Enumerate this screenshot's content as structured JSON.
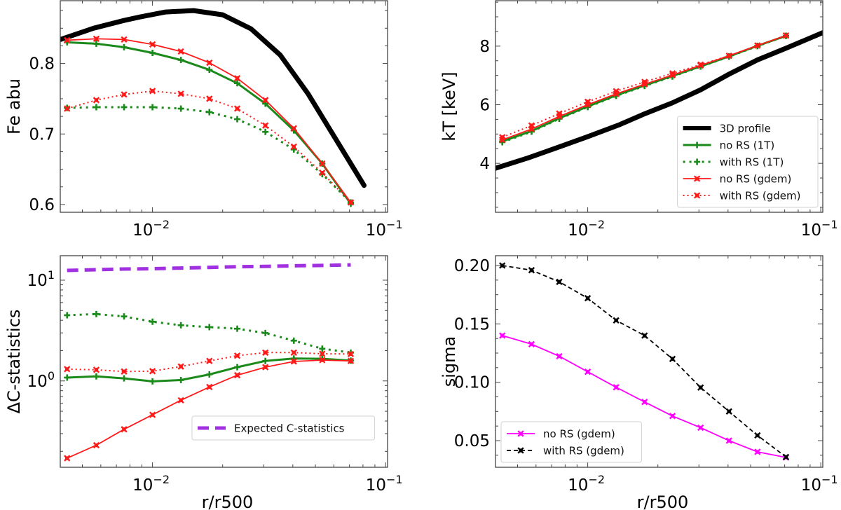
{
  "chart_data": [
    {
      "type": "line",
      "panel": "top-left",
      "title": "",
      "xlabel": "",
      "ylabel": "Fe abu",
      "xscale": "log",
      "yscale": "linear",
      "xlim": [
        0.00402,
        0.102
      ],
      "ylim": [
        0.589,
        0.889
      ],
      "xticks": [
        {
          "value": 0.01,
          "label": "10",
          "exp": "−2"
        },
        {
          "value": 0.1,
          "label": "10",
          "exp": "−1"
        }
      ],
      "yticks": [
        {
          "value": 0.6,
          "label": "0.6"
        },
        {
          "value": 0.7,
          "label": "0.7"
        },
        {
          "value": 0.8,
          "label": "0.8"
        }
      ],
      "legend": null,
      "series": [
        {
          "name": "3D profile",
          "color": "#000000",
          "style": "solid-thick",
          "marker": "none",
          "x": [
            0.00402,
            0.00558,
            0.00755,
            0.00884,
            0.0114,
            0.015,
            0.02,
            0.0265,
            0.0353,
            0.0465,
            0.0809
          ],
          "y": [
            0.834,
            0.85,
            0.861,
            0.866,
            0.873,
            0.875,
            0.869,
            0.849,
            0.812,
            0.757,
            0.627
          ]
        },
        {
          "name": "no RS (1T)",
          "color": "#1a8a1a",
          "style": "solid",
          "marker": "plus",
          "x": [
            0.0043,
            0.00574,
            0.00755,
            0.01,
            0.01324,
            0.01754,
            0.0231,
            0.0305,
            0.0404,
            0.0535,
            0.0709
          ],
          "y": [
            0.83,
            0.828,
            0.823,
            0.815,
            0.805,
            0.791,
            0.772,
            0.743,
            0.705,
            0.658,
            0.601
          ]
        },
        {
          "name": "with RS (1T)",
          "color": "#1a8a1a",
          "style": "dotted",
          "marker": "plus",
          "x": [
            0.0043,
            0.00574,
            0.00755,
            0.01,
            0.01324,
            0.01754,
            0.0231,
            0.0305,
            0.0404,
            0.0535,
            0.0709
          ],
          "y": [
            0.737,
            0.738,
            0.738,
            0.738,
            0.736,
            0.731,
            0.721,
            0.703,
            0.678,
            0.643,
            0.603
          ]
        },
        {
          "name": "no RS (gdem)",
          "color": "#ff1a1a",
          "style": "solid",
          "marker": "x",
          "x": [
            0.0043,
            0.00574,
            0.00755,
            0.01,
            0.01324,
            0.01754,
            0.0231,
            0.0305,
            0.0404,
            0.0535,
            0.0709
          ],
          "y": [
            0.833,
            0.835,
            0.834,
            0.827,
            0.817,
            0.801,
            0.779,
            0.748,
            0.708,
            0.658,
            0.603
          ]
        },
        {
          "name": "with RS (gdem)",
          "color": "#ff1a1a",
          "style": "dotted",
          "marker": "x",
          "x": [
            0.0043,
            0.00574,
            0.00755,
            0.01,
            0.01324,
            0.01754,
            0.0231,
            0.0305,
            0.0404,
            0.0535,
            0.0709
          ],
          "y": [
            0.736,
            0.748,
            0.756,
            0.761,
            0.757,
            0.75,
            0.736,
            0.712,
            0.682,
            0.645,
            0.603
          ]
        }
      ]
    },
    {
      "type": "line",
      "panel": "top-right",
      "title": "",
      "xlabel": "",
      "ylabel": "kT [keV]",
      "xscale": "log",
      "yscale": "linear",
      "xlim": [
        0.00402,
        0.102
      ],
      "ylim": [
        2.33,
        9.55
      ],
      "xticks": [
        {
          "value": 0.01,
          "label": "10",
          "exp": "−2"
        },
        {
          "value": 0.1,
          "label": "10",
          "exp": "−1"
        }
      ],
      "yticks": [
        {
          "value": 4,
          "label": "4"
        },
        {
          "value": 6,
          "label": "6"
        },
        {
          "value": 8,
          "label": "8"
        }
      ],
      "legend": "lower-right",
      "series": [
        {
          "name": "3D profile",
          "color": "#000000",
          "style": "solid-thick",
          "marker": "none",
          "x": [
            0.00401,
            0.00553,
            0.0076,
            0.01,
            0.0136,
            0.0173,
            0.023,
            0.0305,
            0.0401,
            0.0535,
            0.071,
            0.102
          ],
          "y": [
            3.83,
            4.18,
            4.57,
            4.91,
            5.31,
            5.67,
            6.06,
            6.51,
            7.03,
            7.53,
            7.93,
            8.46
          ]
        },
        {
          "name": "no RS (1T)",
          "color": "#1a8a1a",
          "style": "solid",
          "marker": "plus",
          "x": [
            0.0043,
            0.00574,
            0.00755,
            0.01,
            0.01324,
            0.01754,
            0.0231,
            0.0305,
            0.0404,
            0.0535,
            0.0709
          ],
          "y": [
            4.75,
            5.1,
            5.54,
            5.94,
            6.32,
            6.66,
            6.98,
            7.31,
            7.65,
            8.01,
            8.35
          ]
        },
        {
          "name": "with RS (1T)",
          "color": "#1a8a1a",
          "style": "dotted",
          "marker": "plus",
          "x": [
            0.0043,
            0.00574,
            0.00755,
            0.01,
            0.01324,
            0.01754,
            0.0231,
            0.0305,
            0.0404,
            0.0535,
            0.0709
          ],
          "y": [
            4.72,
            5.08,
            5.52,
            5.92,
            6.3,
            6.64,
            6.96,
            7.3,
            7.64,
            8.0,
            8.35
          ]
        },
        {
          "name": "no RS (gdem)",
          "color": "#ff1a1a",
          "style": "solid",
          "marker": "x",
          "x": [
            0.0043,
            0.00574,
            0.00755,
            0.01,
            0.01324,
            0.01754,
            0.0231,
            0.0305,
            0.0404,
            0.0535,
            0.0709
          ],
          "y": [
            4.8,
            5.17,
            5.6,
            6.0,
            6.37,
            6.7,
            7.01,
            7.34,
            7.67,
            8.02,
            8.36
          ]
        },
        {
          "name": "with RS (gdem)",
          "color": "#ff1a1a",
          "style": "dotted",
          "marker": "x",
          "x": [
            0.0043,
            0.00574,
            0.00755,
            0.01,
            0.01324,
            0.01754,
            0.0231,
            0.0305,
            0.0404,
            0.0535,
            0.0709
          ],
          "y": [
            4.89,
            5.29,
            5.7,
            6.1,
            6.46,
            6.78,
            7.07,
            7.37,
            7.67,
            8.02,
            8.36
          ]
        }
      ]
    },
    {
      "type": "line",
      "panel": "bottom-left",
      "title": "",
      "xlabel": "r/r500",
      "ylabel": "ΔC-statistics",
      "xscale": "log",
      "yscale": "log",
      "xlim": [
        0.00402,
        0.102
      ],
      "ylim": [
        0.139,
        17.5
      ],
      "xticks": [
        {
          "value": 0.01,
          "label": "10",
          "exp": "−2"
        },
        {
          "value": 0.1,
          "label": "10",
          "exp": "−1"
        }
      ],
      "yticks": [
        {
          "value": 1,
          "label": "10",
          "exp": "0"
        },
        {
          "value": 10,
          "label": "10",
          "exp": "1"
        }
      ],
      "legend": "lower-right",
      "series": [
        {
          "name": "Expected C-statistics",
          "color": "#a030e0",
          "style": "dashed-thick",
          "marker": "none",
          "in_legend": true,
          "x": [
            0.0043,
            0.00574,
            0.00755,
            0.01,
            0.01324,
            0.01754,
            0.0231,
            0.0305,
            0.0404,
            0.0535,
            0.0709
          ],
          "y": [
            12.5,
            12.7,
            12.9,
            13.0,
            13.2,
            13.4,
            13.6,
            13.7,
            13.9,
            14.0,
            14.2
          ]
        },
        {
          "name": "with RS (1T)",
          "color": "#1a8a1a",
          "style": "dotted",
          "marker": "plus",
          "in_legend": false,
          "x": [
            0.0043,
            0.00574,
            0.00755,
            0.01,
            0.01324,
            0.01754,
            0.0231,
            0.0305,
            0.0404,
            0.0535,
            0.0709
          ],
          "y": [
            4.49,
            4.61,
            4.37,
            3.87,
            3.57,
            3.42,
            3.3,
            2.99,
            2.51,
            2.09,
            1.91
          ]
        },
        {
          "name": "with RS (gdem)",
          "color": "#ff1a1a",
          "style": "dotted",
          "marker": "x",
          "in_legend": false,
          "x": [
            0.0043,
            0.00574,
            0.00755,
            0.01,
            0.01324,
            0.01754,
            0.0231,
            0.0305,
            0.0404,
            0.0535,
            0.0709
          ],
          "y": [
            1.31,
            1.29,
            1.24,
            1.25,
            1.39,
            1.58,
            1.78,
            1.91,
            1.91,
            1.86,
            1.85
          ]
        },
        {
          "name": "no RS (1T)",
          "color": "#1a8a1a",
          "style": "solid",
          "marker": "plus",
          "in_legend": false,
          "x": [
            0.0043,
            0.00574,
            0.00755,
            0.01,
            0.01324,
            0.01754,
            0.0231,
            0.0305,
            0.0404,
            0.0535,
            0.0709
          ],
          "y": [
            1.08,
            1.11,
            1.06,
            0.99,
            1.02,
            1.16,
            1.37,
            1.58,
            1.67,
            1.66,
            1.59
          ]
        },
        {
          "name": "no RS (gdem)",
          "color": "#ff1a1a",
          "style": "solid",
          "marker": "x",
          "in_legend": false,
          "x": [
            0.0043,
            0.00574,
            0.00755,
            0.01,
            0.01324,
            0.01754,
            0.0231,
            0.0305,
            0.0404,
            0.0535,
            0.0709
          ],
          "y": [
            0.171,
            0.23,
            0.331,
            0.461,
            0.643,
            0.871,
            1.14,
            1.37,
            1.56,
            1.61,
            1.58
          ]
        }
      ]
    },
    {
      "type": "line",
      "panel": "bottom-right",
      "title": "",
      "xlabel": "r/r500",
      "ylabel": "sigma",
      "xscale": "log",
      "yscale": "linear",
      "xlim": [
        0.00402,
        0.102
      ],
      "ylim": [
        0.0272,
        0.2084
      ],
      "xticks": [
        {
          "value": 0.01,
          "label": "10",
          "exp": "−2"
        },
        {
          "value": 0.1,
          "label": "10",
          "exp": "−1"
        }
      ],
      "yticks": [
        {
          "value": 0.05,
          "label": "0.05"
        },
        {
          "value": 0.1,
          "label": "0.10"
        },
        {
          "value": 0.15,
          "label": "0.15"
        },
        {
          "value": 0.2,
          "label": "0.20"
        }
      ],
      "legend": "lower-left",
      "series": [
        {
          "name": "no RS (gdem)",
          "color": "#ff00ff",
          "style": "solid",
          "marker": "x",
          "x": [
            0.0043,
            0.00574,
            0.00755,
            0.01,
            0.01324,
            0.01754,
            0.0231,
            0.0305,
            0.0404,
            0.0535,
            0.0709
          ],
          "y": [
            0.14,
            0.1326,
            0.1223,
            0.109,
            0.0957,
            0.0831,
            0.0711,
            0.0611,
            0.05,
            0.0404,
            0.0356
          ]
        },
        {
          "name": "with RS (gdem)",
          "color": "#000000",
          "style": "dashed",
          "marker": "x",
          "x": [
            0.0043,
            0.00574,
            0.00755,
            0.01,
            0.01324,
            0.01754,
            0.0231,
            0.0305,
            0.0404,
            0.0535,
            0.0709
          ],
          "y": [
            0.2,
            0.196,
            0.186,
            0.172,
            0.153,
            0.14,
            0.12,
            0.0955,
            0.075,
            0.0545,
            0.036
          ]
        }
      ]
    }
  ]
}
